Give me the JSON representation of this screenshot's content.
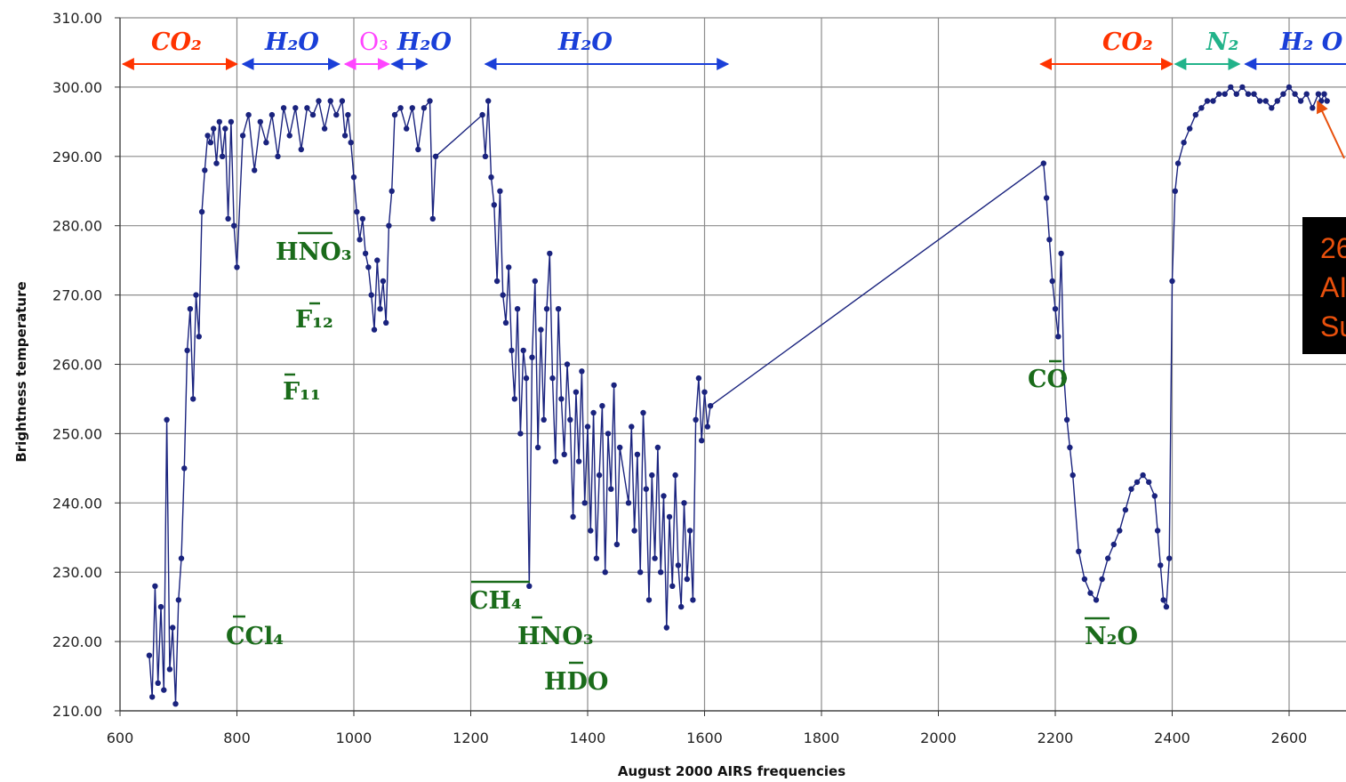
{
  "chart_data": {
    "type": "scatter",
    "title": "",
    "xlabel": "August 2000 AIRS frequencies",
    "ylabel": "Brightness temperature",
    "xlim": [
      600,
      2700
    ],
    "ylim": [
      210,
      310
    ],
    "x_ticks": [
      "600",
      "800",
      "1000",
      "1200",
      "1400",
      "1600",
      "1800",
      "2000",
      "2200",
      "2400",
      "2600"
    ],
    "y_ticks": [
      "210.00",
      "220.00",
      "230.00",
      "240.00",
      "250.00",
      "260.00",
      "270.00",
      "280.00",
      "290.00",
      "300.00",
      "310.00"
    ],
    "grid": true,
    "legend": "none",
    "series": [
      {
        "color": "#1a237e",
        "points": [
          [
            650,
            218
          ],
          [
            655,
            212
          ],
          [
            660,
            228
          ],
          [
            665,
            214
          ],
          [
            670,
            225
          ],
          [
            675,
            213
          ],
          [
            680,
            252
          ],
          [
            685,
            216
          ],
          [
            690,
            222
          ],
          [
            695,
            211
          ],
          [
            700,
            226
          ],
          [
            705,
            232
          ],
          [
            710,
            245
          ],
          [
            715,
            262
          ],
          [
            720,
            268
          ],
          [
            725,
            255
          ],
          [
            730,
            270
          ],
          [
            735,
            264
          ],
          [
            740,
            282
          ],
          [
            745,
            288
          ],
          [
            750,
            293
          ],
          [
            755,
            292
          ],
          [
            760,
            294
          ],
          [
            765,
            289
          ],
          [
            770,
            295
          ],
          [
            775,
            290
          ],
          [
            780,
            294
          ],
          [
            785,
            281
          ],
          [
            790,
            295
          ],
          [
            795,
            280
          ],
          [
            800,
            274
          ],
          [
            810,
            293
          ],
          [
            820,
            296
          ],
          [
            830,
            288
          ],
          [
            840,
            295
          ],
          [
            850,
            292
          ],
          [
            860,
            296
          ],
          [
            870,
            290
          ],
          [
            880,
            297
          ],
          [
            890,
            293
          ],
          [
            900,
            297
          ],
          [
            910,
            291
          ],
          [
            920,
            297
          ],
          [
            930,
            296
          ],
          [
            940,
            298
          ],
          [
            950,
            294
          ],
          [
            960,
            298
          ],
          [
            970,
            296
          ],
          [
            980,
            298
          ],
          [
            985,
            293
          ],
          [
            990,
            296
          ],
          [
            995,
            292
          ],
          [
            1000,
            287
          ],
          [
            1005,
            282
          ],
          [
            1010,
            278
          ],
          [
            1015,
            281
          ],
          [
            1020,
            276
          ],
          [
            1025,
            274
          ],
          [
            1030,
            270
          ],
          [
            1035,
            265
          ],
          [
            1040,
            275
          ],
          [
            1045,
            268
          ],
          [
            1050,
            272
          ],
          [
            1055,
            266
          ],
          [
            1060,
            280
          ],
          [
            1065,
            285
          ],
          [
            1070,
            296
          ],
          [
            1080,
            297
          ],
          [
            1090,
            294
          ],
          [
            1100,
            297
          ],
          [
            1110,
            291
          ],
          [
            1120,
            297
          ],
          [
            1130,
            298
          ],
          [
            1135,
            281
          ],
          [
            1140,
            290
          ],
          [
            1220,
            296
          ],
          [
            1225,
            290
          ],
          [
            1230,
            298
          ],
          [
            1235,
            287
          ],
          [
            1240,
            283
          ],
          [
            1245,
            272
          ],
          [
            1250,
            285
          ],
          [
            1255,
            270
          ],
          [
            1260,
            266
          ],
          [
            1265,
            274
          ],
          [
            1270,
            262
          ],
          [
            1275,
            255
          ],
          [
            1280,
            268
          ],
          [
            1285,
            250
          ],
          [
            1290,
            262
          ],
          [
            1295,
            258
          ],
          [
            1300,
            228
          ],
          [
            1305,
            261
          ],
          [
            1310,
            272
          ],
          [
            1315,
            248
          ],
          [
            1320,
            265
          ],
          [
            1325,
            252
          ],
          [
            1330,
            268
          ],
          [
            1335,
            276
          ],
          [
            1340,
            258
          ],
          [
            1345,
            246
          ],
          [
            1350,
            268
          ],
          [
            1355,
            255
          ],
          [
            1360,
            247
          ],
          [
            1365,
            260
          ],
          [
            1370,
            252
          ],
          [
            1375,
            238
          ],
          [
            1380,
            256
          ],
          [
            1385,
            246
          ],
          [
            1390,
            259
          ],
          [
            1395,
            240
          ],
          [
            1400,
            251
          ],
          [
            1405,
            236
          ],
          [
            1410,
            253
          ],
          [
            1415,
            232
          ],
          [
            1420,
            244
          ],
          [
            1425,
            254
          ],
          [
            1430,
            230
          ],
          [
            1435,
            250
          ],
          [
            1440,
            242
          ],
          [
            1445,
            257
          ],
          [
            1450,
            234
          ],
          [
            1455,
            248
          ],
          [
            1470,
            240
          ],
          [
            1475,
            251
          ],
          [
            1480,
            236
          ],
          [
            1485,
            247
          ],
          [
            1490,
            230
          ],
          [
            1495,
            253
          ],
          [
            1500,
            242
          ],
          [
            1505,
            226
          ],
          [
            1510,
            244
          ],
          [
            1515,
            232
          ],
          [
            1520,
            248
          ],
          [
            1525,
            230
          ],
          [
            1530,
            241
          ],
          [
            1535,
            222
          ],
          [
            1540,
            238
          ],
          [
            1545,
            228
          ],
          [
            1550,
            244
          ],
          [
            1555,
            231
          ],
          [
            1560,
            225
          ],
          [
            1565,
            240
          ],
          [
            1570,
            229
          ],
          [
            1575,
            236
          ],
          [
            1580,
            226
          ],
          [
            1585,
            252
          ],
          [
            1590,
            258
          ],
          [
            1595,
            249
          ],
          [
            1600,
            256
          ],
          [
            1605,
            251
          ],
          [
            1610,
            254
          ],
          [
            2180,
            289
          ],
          [
            2185,
            284
          ],
          [
            2190,
            278
          ],
          [
            2195,
            272
          ],
          [
            2200,
            268
          ],
          [
            2205,
            264
          ],
          [
            2210,
            276
          ],
          [
            2215,
            258
          ],
          [
            2220,
            252
          ],
          [
            2225,
            248
          ],
          [
            2230,
            244
          ],
          [
            2240,
            233
          ],
          [
            2250,
            229
          ],
          [
            2260,
            227
          ],
          [
            2270,
            226
          ],
          [
            2280,
            229
          ],
          [
            2290,
            232
          ],
          [
            2300,
            234
          ],
          [
            2310,
            236
          ],
          [
            2320,
            239
          ],
          [
            2330,
            242
          ],
          [
            2340,
            243
          ],
          [
            2350,
            244
          ],
          [
            2360,
            243
          ],
          [
            2370,
            241
          ],
          [
            2375,
            236
          ],
          [
            2380,
            231
          ],
          [
            2385,
            226
          ],
          [
            2390,
            225
          ],
          [
            2395,
            232
          ],
          [
            2400,
            272
          ],
          [
            2405,
            285
          ],
          [
            2410,
            289
          ],
          [
            2420,
            292
          ],
          [
            2430,
            294
          ],
          [
            2440,
            296
          ],
          [
            2450,
            297
          ],
          [
            2460,
            298
          ],
          [
            2470,
            298
          ],
          [
            2480,
            299
          ],
          [
            2490,
            299
          ],
          [
            2500,
            300
          ],
          [
            2510,
            299
          ],
          [
            2520,
            300
          ],
          [
            2530,
            299
          ],
          [
            2540,
            299
          ],
          [
            2550,
            298
          ],
          [
            2560,
            298
          ],
          [
            2570,
            297
          ],
          [
            2580,
            298
          ],
          [
            2590,
            299
          ],
          [
            2600,
            300
          ],
          [
            2610,
            299
          ],
          [
            2620,
            298
          ],
          [
            2630,
            299
          ],
          [
            2640,
            297
          ],
          [
            2650,
            299
          ],
          [
            2655,
            298
          ],
          [
            2660,
            299
          ],
          [
            2665,
            298
          ]
        ]
      }
    ]
  },
  "band_labels": [
    {
      "text": "CO₂",
      "color": "#ff3300"
    },
    {
      "text": "H₂O",
      "color": "#1a3fd8"
    },
    {
      "text": "O₃",
      "color": "#ff44ff"
    },
    {
      "text": "H₂O",
      "color": "#1a3fd8"
    },
    {
      "text": "H₂O",
      "color": "#1a3fd8"
    },
    {
      "text": "CO₂",
      "color": "#ff3300"
    },
    {
      "text": "N₂",
      "color": "#22b38a"
    },
    {
      "text": "H₂ O",
      "color": "#1a3fd8"
    }
  ],
  "gas_labels": [
    {
      "text": "HNO₃"
    },
    {
      "text": "F₁₂"
    },
    {
      "text": "F₁₁"
    },
    {
      "text": "CCl₄"
    },
    {
      "text": "CH₄"
    },
    {
      "text": "HNO₃"
    },
    {
      "text": "HDO"
    },
    {
      "text": "CO"
    },
    {
      "text": "N₂O"
    }
  ],
  "callout": {
    "lines": [
      "26",
      "AI",
      "Su"
    ],
    "background": "#000000",
    "text_color": "#e8500c"
  },
  "colors": {
    "data": "#1a237e",
    "grid": "#8c8c8c",
    "gas_text": "#1a6b1a"
  }
}
